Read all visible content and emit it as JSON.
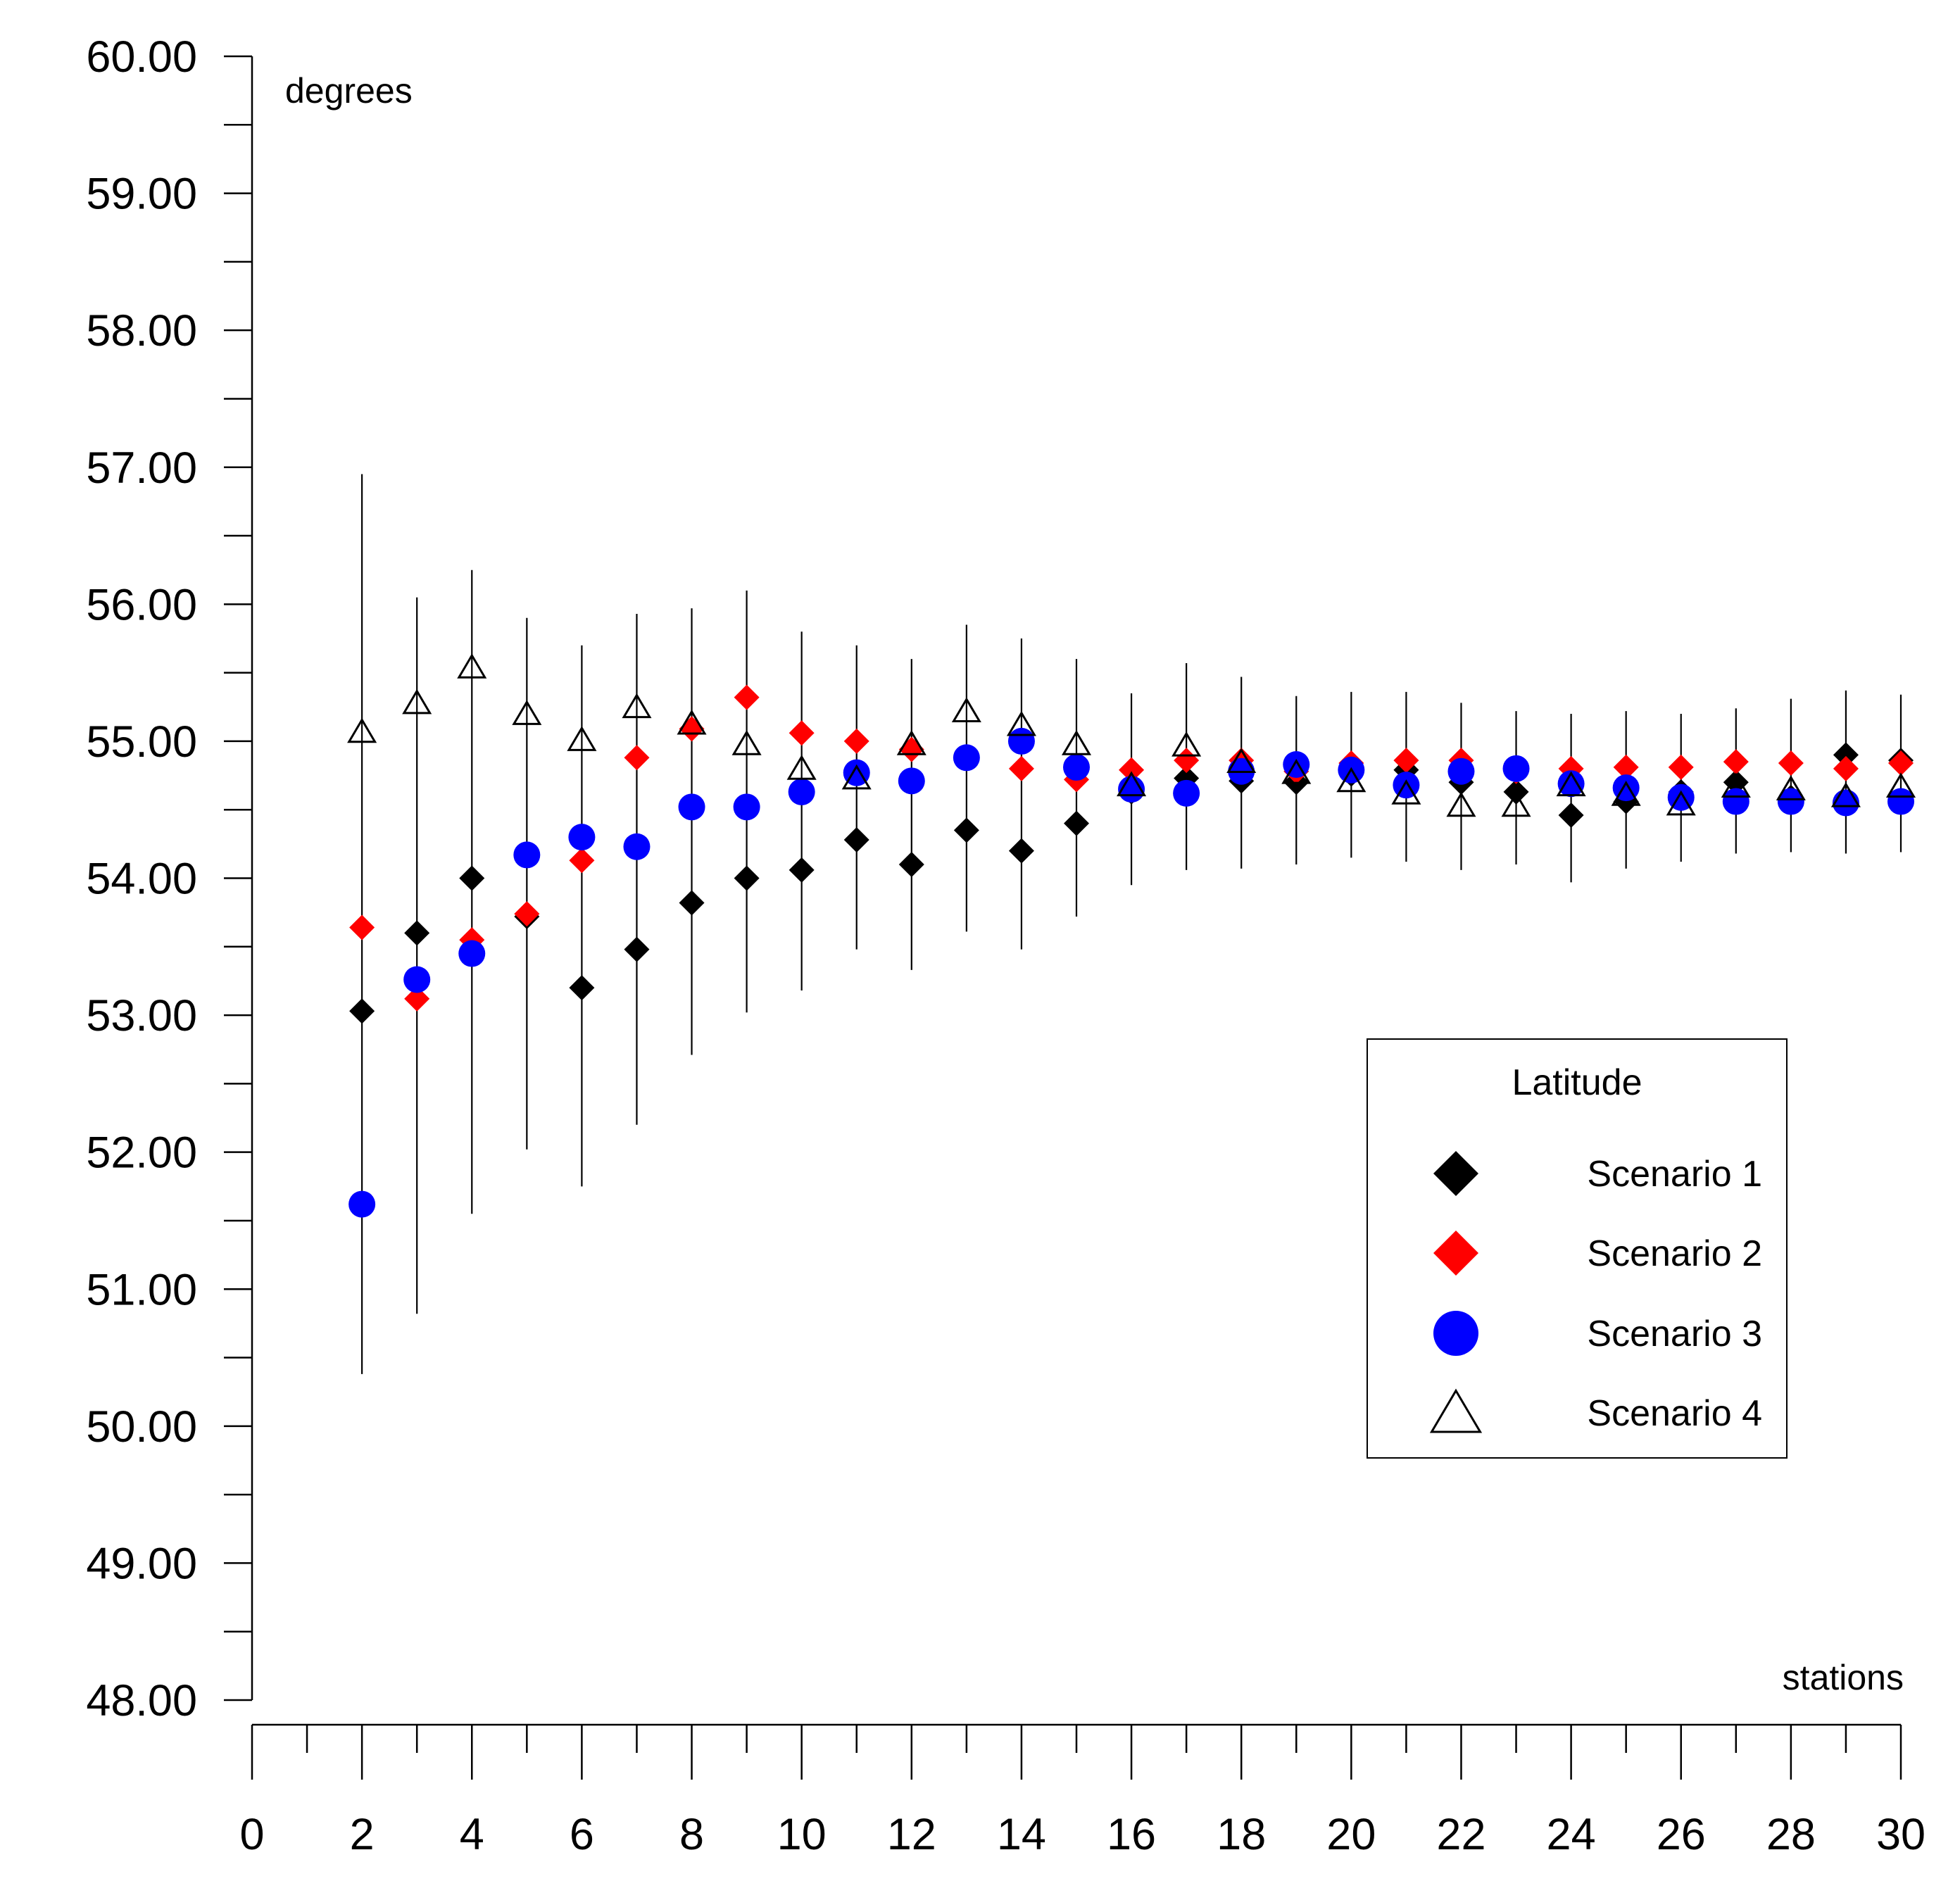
{
  "chart_data": {
    "type": "scatter",
    "title": "",
    "xlabel": "stations",
    "ylabel": "degrees",
    "xlim": [
      0,
      30
    ],
    "ylim": [
      48,
      60
    ],
    "x_ticks": [
      "0",
      "2",
      "4",
      "6",
      "8",
      "10",
      "12",
      "14",
      "16",
      "18",
      "20",
      "22",
      "24",
      "26",
      "28",
      "30"
    ],
    "y_ticks": [
      "48.00",
      "49.00",
      "50.00",
      "51.00",
      "52.00",
      "53.00",
      "54.00",
      "55.00",
      "56.00",
      "57.00",
      "58.00",
      "59.00",
      "60.00"
    ],
    "legend": {
      "title": "Latitude",
      "placement": "center-right",
      "entries": [
        "Scenario 1",
        "Scenario 2",
        "Scenario 3",
        "Scenario 4"
      ]
    },
    "x": [
      2,
      3,
      4,
      5,
      6,
      7,
      8,
      9,
      10,
      11,
      12,
      13,
      14,
      15,
      16,
      17,
      18,
      19,
      20,
      21,
      22,
      23,
      24,
      25,
      26,
      27,
      28,
      29,
      30
    ],
    "error_bars": {
      "low": [
        50.38,
        50.82,
        51.55,
        52.02,
        51.75,
        52.2,
        52.71,
        53.02,
        53.18,
        53.48,
        53.33,
        53.61,
        53.48,
        53.72,
        53.95,
        54.06,
        54.07,
        54.1,
        54.15,
        54.12,
        54.06,
        54.1,
        53.97,
        54.07,
        54.12,
        54.18,
        54.19,
        54.18,
        54.19
      ],
      "high": [
        56.95,
        56.05,
        56.25,
        55.9,
        55.7,
        55.93,
        55.97,
        56.1,
        55.8,
        55.7,
        55.6,
        55.85,
        55.75,
        55.6,
        55.35,
        55.57,
        55.47,
        55.33,
        55.36,
        55.36,
        55.28,
        55.22,
        55.2,
        55.22,
        55.2,
        55.24,
        55.31,
        55.37,
        55.34
      ]
    },
    "series": [
      {
        "name": "Scenario 1",
        "marker": "diamond",
        "color": "#000000",
        "values": [
          53.03,
          53.6,
          54.0,
          53.72,
          53.2,
          53.48,
          53.82,
          54.0,
          54.06,
          54.28,
          54.1,
          54.35,
          54.2,
          54.4,
          54.63,
          54.73,
          54.71,
          54.7,
          54.76,
          54.79,
          54.7,
          54.63,
          54.46,
          54.56,
          54.63,
          54.7,
          54.59,
          54.9,
          54.86
        ]
      },
      {
        "name": "Scenario 2",
        "marker": "diamond",
        "color": "#ff0000",
        "values": [
          53.64,
          53.12,
          53.55,
          53.74,
          54.13,
          54.88,
          55.09,
          55.32,
          55.06,
          55.0,
          54.94,
          54.88,
          54.8,
          54.72,
          54.79,
          54.86,
          54.86,
          54.78,
          54.84,
          54.86,
          54.86,
          54.78,
          54.8,
          54.81,
          54.81,
          54.85,
          54.84,
          54.8,
          54.84
        ]
      },
      {
        "name": "Scenario 3",
        "marker": "circle",
        "color": "#0000ff",
        "values": [
          51.62,
          53.26,
          53.45,
          54.17,
          54.3,
          54.23,
          54.52,
          54.52,
          54.63,
          54.77,
          54.71,
          54.88,
          55.0,
          54.81,
          54.65,
          54.62,
          54.78,
          54.83,
          54.79,
          54.68,
          54.78,
          54.8,
          54.69,
          54.66,
          54.59,
          54.56,
          54.56,
          54.55,
          54.56
        ]
      },
      {
        "name": "Scenario 4",
        "marker": "triangle-open",
        "color": "#000000",
        "values": [
          55.07,
          55.28,
          55.54,
          55.2,
          55.01,
          55.25,
          55.13,
          54.98,
          54.8,
          54.73,
          54.98,
          55.22,
          55.12,
          54.98,
          54.68,
          54.97,
          54.85,
          54.77,
          54.71,
          54.62,
          54.53,
          54.53,
          54.68,
          54.61,
          54.54,
          54.67,
          54.65,
          54.6,
          54.67
        ]
      }
    ]
  }
}
